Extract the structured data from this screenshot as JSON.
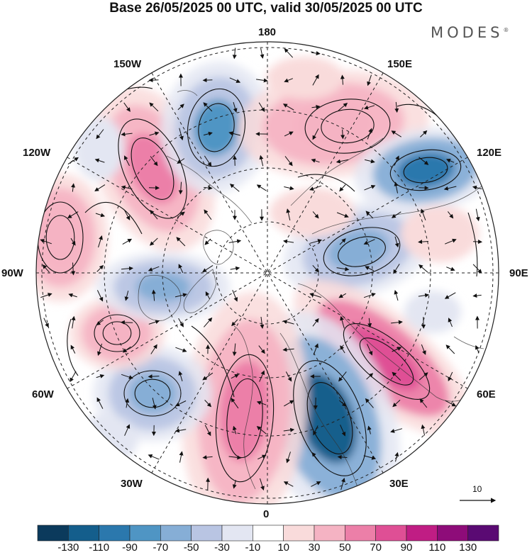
{
  "title": "Base 26/05/2025 00 UTC, valid 30/05/2025 00 UTC",
  "brand": "MODES",
  "brand_mark": "®",
  "longitude_labels": {
    "n180": "180",
    "w150": "150W",
    "e150": "150E",
    "w120": "120W",
    "e120": "120E",
    "w90": "90W",
    "e90": "90E",
    "w60": "60W",
    "e60": "60E",
    "w30": "30W",
    "e30": "30E",
    "s0": "0"
  },
  "colorbar": {
    "levels": [
      "-130",
      "-110",
      "-90",
      "-70",
      "-50",
      "-30",
      "-10",
      "10",
      "30",
      "50",
      "70",
      "90",
      "110",
      "130"
    ],
    "colors": [
      "#0b3a5c",
      "#145e8c",
      "#2b78ad",
      "#4f95c4",
      "#86aed6",
      "#b9c5e3",
      "#e3e6f2",
      "#ffffff",
      "#f9dbdb",
      "#f5b3c3",
      "#ec7fa8",
      "#df4f95",
      "#c01d84",
      "#8e0c79",
      "#5a0a73"
    ]
  },
  "vector_reference": "10",
  "anomalies": [
    {
      "type": "positive",
      "level": "70",
      "lon": "155W"
    },
    {
      "type": "negative",
      "level": "-70",
      "lon": "170W"
    },
    {
      "type": "positive",
      "level": "50",
      "lon": "165E"
    },
    {
      "type": "negative",
      "level": "-90",
      "lon": "125E"
    },
    {
      "type": "negative",
      "level": "-50",
      "lon": "100E"
    },
    {
      "type": "positive",
      "level": "90",
      "lon": "50E"
    },
    {
      "type": "negative",
      "level": "-110",
      "lon": "20E"
    },
    {
      "type": "positive",
      "level": "70",
      "lon": "5W"
    },
    {
      "type": "negative",
      "level": "-50",
      "lon": "55W"
    },
    {
      "type": "positive",
      "level": "50",
      "lon": "75W"
    },
    {
      "type": "negative",
      "level": "-50",
      "lon": "95W"
    },
    {
      "type": "positive",
      "level": "50",
      "lon": "105W"
    }
  ]
}
